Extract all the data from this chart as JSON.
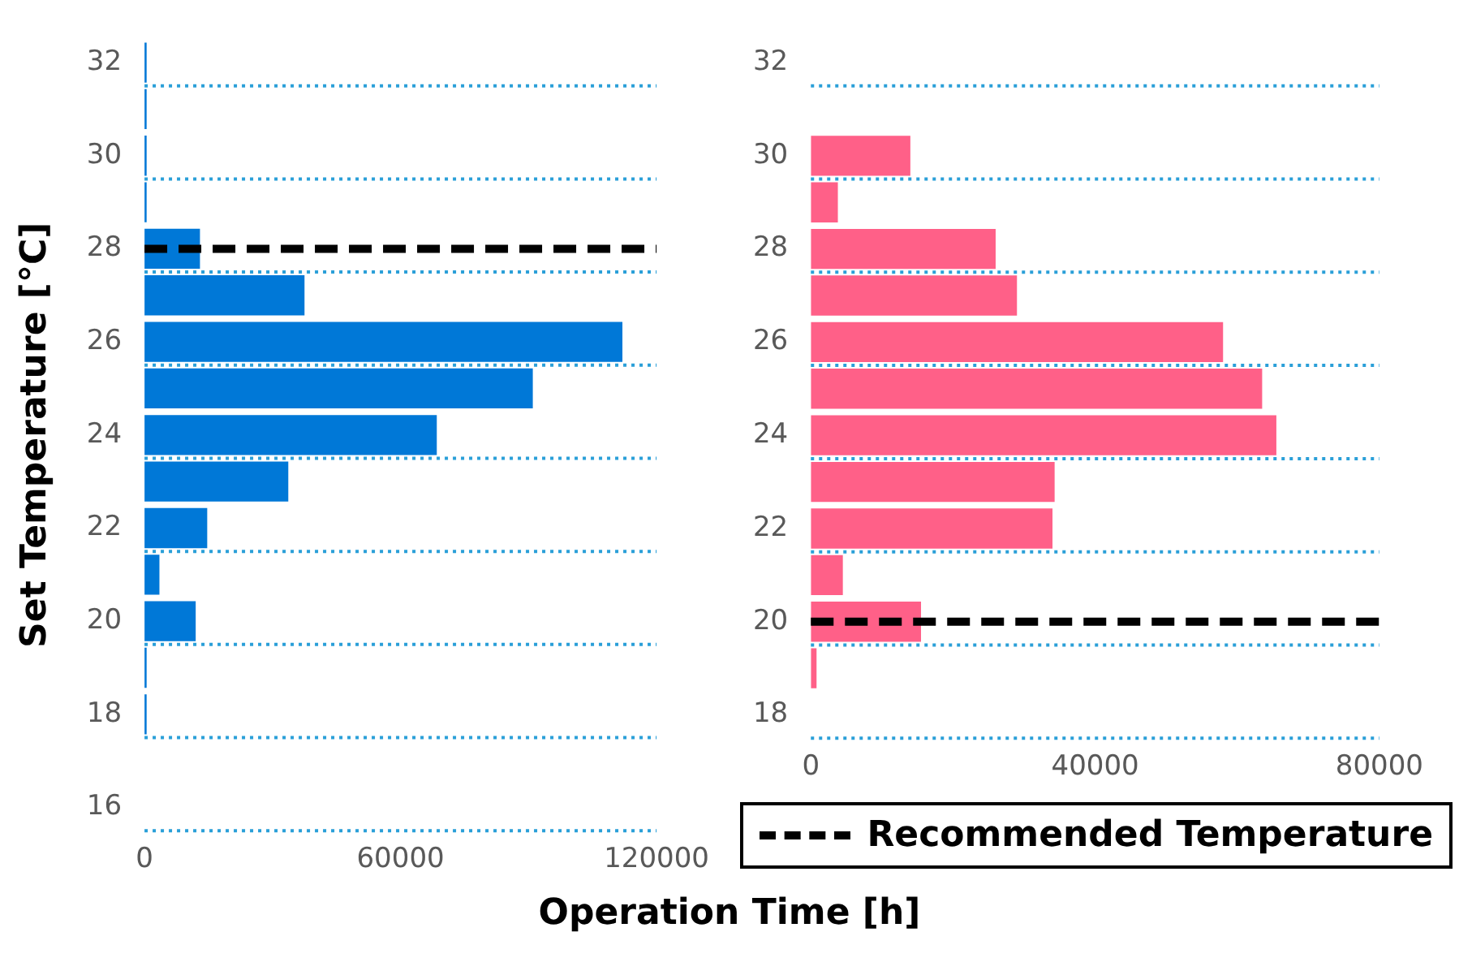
{
  "chart_data": [
    {
      "type": "bar",
      "orientation": "horizontal",
      "ylabel": "Set Temperature [°C]",
      "xlabel": "Operation Time [h]",
      "categories": [
        "32",
        null,
        "30",
        null,
        "28",
        null,
        "26",
        null,
        "24",
        null,
        "22",
        null,
        "20",
        null,
        "18",
        null,
        "16"
      ],
      "series": [
        {
          "color": "#0078d7",
          "values": [
            500,
            500,
            500,
            500,
            13000,
            37500,
            112000,
            91000,
            68500,
            33700,
            14700,
            3500,
            12000,
            500,
            500,
            null,
            null
          ]
        }
      ],
      "xlim": [
        0,
        120000
      ],
      "xticks": [
        0,
        60000,
        120000
      ],
      "grid": "y",
      "legend": "bottom right",
      "ref_lines": [
        {
          "axis": "y",
          "value": "28",
          "label": "Recommended Temperature",
          "color": "#000000",
          "line_style": "dashed"
        }
      ]
    },
    {
      "type": "bar",
      "orientation": "horizontal",
      "categories": [
        "32",
        null,
        "30",
        null,
        "28",
        null,
        "26",
        null,
        "24",
        null,
        "22",
        null,
        "20",
        null,
        "18"
      ],
      "series": [
        {
          "color": "#ff6088",
          "values": [
            null,
            null,
            14000,
            3800,
            26000,
            29000,
            58000,
            63500,
            65500,
            34300,
            34000,
            4500,
            15500,
            800,
            null
          ]
        }
      ],
      "xlim": [
        0,
        80000
      ],
      "xticks": [
        0,
        40000,
        80000
      ],
      "grid": "y",
      "ref_lines": [
        {
          "axis": "y",
          "value": "20",
          "color": "#000000",
          "line_style": "dashed"
        }
      ]
    }
  ]
}
